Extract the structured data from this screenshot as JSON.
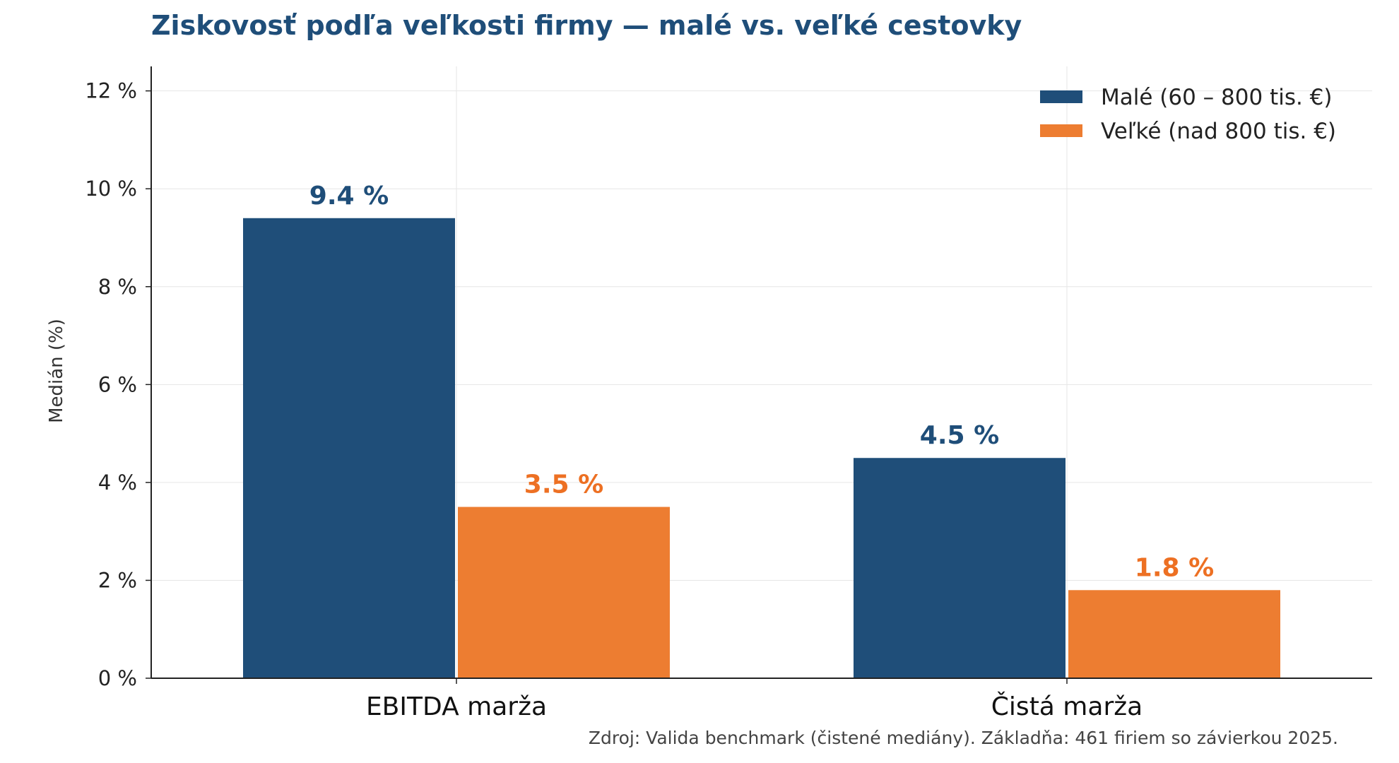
{
  "chart_data": {
    "type": "bar",
    "title": "Ziskovosť podľa veľkosti firmy — malé vs. veľké cestovky",
    "ylabel": "Medián (%)",
    "xlabel": "",
    "categories": [
      "EBITDA marža",
      "Čistá marža"
    ],
    "series": [
      {
        "name": "Malé (60 – 800 tis. €)",
        "values": [
          9.4,
          4.5
        ],
        "labels": [
          "9.4 %",
          "4.5 %"
        ],
        "color": "#1f4e79"
      },
      {
        "name": "Veľké (nad 800 tis. €)",
        "values": [
          3.5,
          1.8
        ],
        "labels": [
          "3.5 %",
          "1.8 %"
        ],
        "color": "#ed7d31"
      }
    ],
    "ylim": [
      0,
      12.5
    ],
    "yticks": [
      0,
      2,
      4,
      6,
      8,
      10,
      12
    ],
    "ytick_labels": [
      "0 %",
      "2 %",
      "4 %",
      "6 %",
      "8 %",
      "10 %",
      "12 %"
    ],
    "grid": true,
    "legend_position": "top-right"
  },
  "source_note": "Zdroj: Valida benchmark (čistené mediány). Základňa: 461 firiem so závierkou 2025."
}
